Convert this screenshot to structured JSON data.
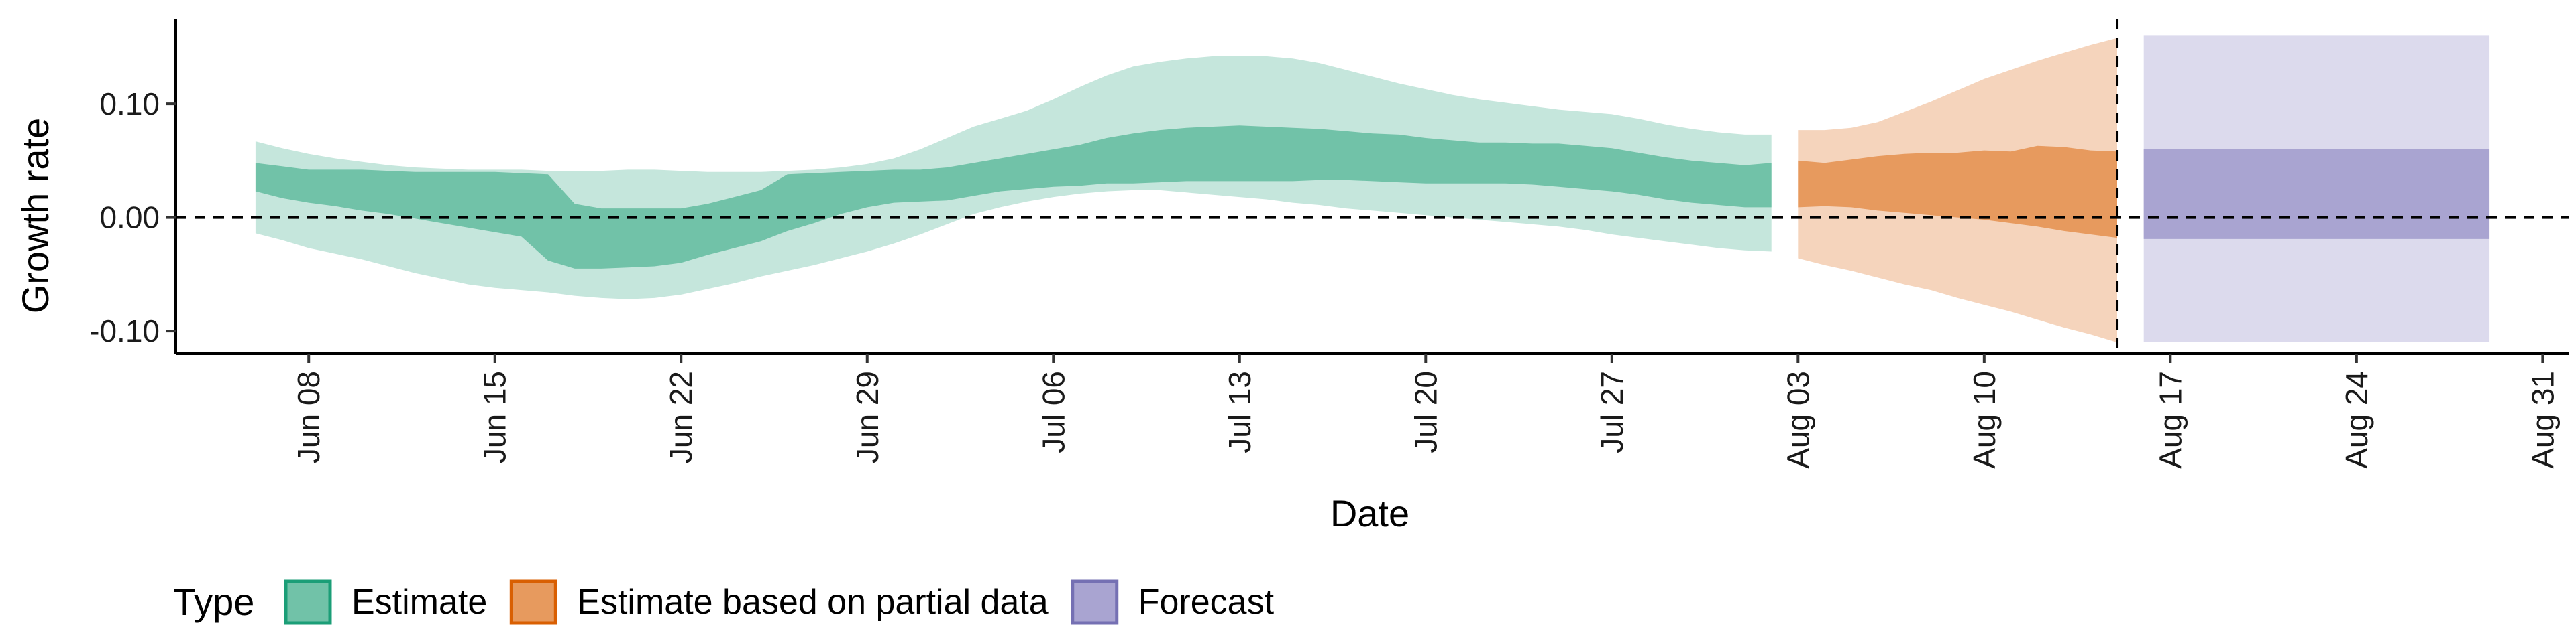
{
  "chart_data": {
    "type": "area",
    "xlabel": "Date",
    "ylabel": "Growth rate",
    "ylim": [
      -0.12,
      0.175
    ],
    "xlim": [
      "2020-06-03",
      "2020-09-01"
    ],
    "y_ticks": [
      -0.1,
      0.0,
      0.1
    ],
    "y_tick_labels": [
      "-0.10",
      "0.00",
      "0.10"
    ],
    "x_ticks": [
      "2020-06-08",
      "2020-06-15",
      "2020-06-22",
      "2020-06-29",
      "2020-07-06",
      "2020-07-13",
      "2020-07-20",
      "2020-07-27",
      "2020-08-03",
      "2020-08-10",
      "2020-08-17",
      "2020-08-24",
      "2020-08-31"
    ],
    "x_tick_labels": [
      "Jun 08",
      "Jun 15",
      "Jun 22",
      "Jun 29",
      "Jul 06",
      "Jul 13",
      "Jul 20",
      "Jul 27",
      "Aug 03",
      "Aug 10",
      "Aug 17",
      "Aug 24",
      "Aug 31"
    ],
    "reference_lines": {
      "horizontal_y": 0.0,
      "vertical_x": "2020-08-15",
      "style": "dashed"
    },
    "grid": false,
    "legend": {
      "title": "Type",
      "position": "bottom-left",
      "entries": [
        {
          "label": "Estimate",
          "fill": "#71c2a8",
          "border": "#1b9e77"
        },
        {
          "label": "Estimate based on partial data",
          "fill": "#e79a5e",
          "border": "#d95f02"
        },
        {
          "label": "Forecast",
          "fill": "#a9a4d1",
          "border": "#7570b3"
        }
      ]
    },
    "colors": {
      "estimate_inner": "#71c2a8",
      "estimate_outer": "#c5e6dc",
      "partial_inner": "#e79a5e",
      "partial_outer": "#f5d4bc",
      "forecast_inner": "#a9a4d1",
      "forecast_outer": "#dcdaed"
    },
    "series": [
      {
        "name": "Estimate",
        "x": [
          "2020-06-06",
          "2020-06-07",
          "2020-06-08",
          "2020-06-09",
          "2020-06-10",
          "2020-06-11",
          "2020-06-12",
          "2020-06-13",
          "2020-06-14",
          "2020-06-15",
          "2020-06-16",
          "2020-06-17",
          "2020-06-18",
          "2020-06-19",
          "2020-06-20",
          "2020-06-21",
          "2020-06-22",
          "2020-06-23",
          "2020-06-24",
          "2020-06-25",
          "2020-06-26",
          "2020-06-27",
          "2020-06-28",
          "2020-06-29",
          "2020-06-30",
          "2020-07-01",
          "2020-07-02",
          "2020-07-03",
          "2020-07-04",
          "2020-07-05",
          "2020-07-06",
          "2020-07-07",
          "2020-07-08",
          "2020-07-09",
          "2020-07-10",
          "2020-07-11",
          "2020-07-12",
          "2020-07-13",
          "2020-07-14",
          "2020-07-15",
          "2020-07-16",
          "2020-07-17",
          "2020-07-18",
          "2020-07-19",
          "2020-07-20",
          "2020-07-21",
          "2020-07-22",
          "2020-07-23",
          "2020-07-24",
          "2020-07-25",
          "2020-07-26",
          "2020-07-27",
          "2020-07-28",
          "2020-07-29",
          "2020-07-30",
          "2020-07-31",
          "2020-08-01",
          "2020-08-02"
        ],
        "upper_outer": [
          0.067,
          0.061,
          0.056,
          0.052,
          0.049,
          0.046,
          0.044,
          0.043,
          0.042,
          0.042,
          0.042,
          0.041,
          0.041,
          0.041,
          0.042,
          0.042,
          0.041,
          0.04,
          0.04,
          0.04,
          0.041,
          0.042,
          0.044,
          0.047,
          0.052,
          0.06,
          0.07,
          0.08,
          0.087,
          0.094,
          0.104,
          0.115,
          0.125,
          0.133,
          0.137,
          0.14,
          0.142,
          0.142,
          0.142,
          0.14,
          0.136,
          0.13,
          0.124,
          0.118,
          0.113,
          0.108,
          0.104,
          0.101,
          0.098,
          0.095,
          0.093,
          0.091,
          0.087,
          0.082,
          0.078,
          0.075,
          0.073,
          0.073
        ],
        "upper_inner": [
          0.048,
          0.045,
          0.042,
          0.042,
          0.042,
          0.041,
          0.04,
          0.04,
          0.04,
          0.04,
          0.039,
          0.038,
          0.012,
          0.008,
          0.008,
          0.008,
          0.008,
          0.012,
          0.018,
          0.024,
          0.038,
          0.039,
          0.04,
          0.041,
          0.042,
          0.042,
          0.044,
          0.048,
          0.052,
          0.056,
          0.06,
          0.064,
          0.07,
          0.074,
          0.077,
          0.079,
          0.08,
          0.081,
          0.08,
          0.079,
          0.078,
          0.076,
          0.074,
          0.073,
          0.07,
          0.068,
          0.066,
          0.066,
          0.065,
          0.065,
          0.063,
          0.061,
          0.057,
          0.053,
          0.05,
          0.048,
          0.046,
          0.048
        ],
        "lower_inner": [
          0.023,
          0.017,
          0.013,
          0.01,
          0.006,
          0.003,
          -0.001,
          -0.005,
          -0.009,
          -0.013,
          -0.017,
          -0.038,
          -0.045,
          -0.045,
          -0.044,
          -0.043,
          -0.04,
          -0.033,
          -0.027,
          -0.021,
          -0.012,
          -0.005,
          0.003,
          0.009,
          0.013,
          0.014,
          0.015,
          0.019,
          0.023,
          0.025,
          0.027,
          0.028,
          0.03,
          0.03,
          0.031,
          0.032,
          0.032,
          0.032,
          0.032,
          0.032,
          0.033,
          0.033,
          0.032,
          0.031,
          0.03,
          0.03,
          0.03,
          0.03,
          0.029,
          0.027,
          0.025,
          0.023,
          0.02,
          0.016,
          0.013,
          0.011,
          0.009,
          0.009
        ],
        "lower_outer": [
          -0.014,
          -0.02,
          -0.027,
          -0.032,
          -0.037,
          -0.043,
          -0.049,
          -0.054,
          -0.059,
          -0.062,
          -0.064,
          -0.066,
          -0.069,
          -0.071,
          -0.072,
          -0.071,
          -0.068,
          -0.063,
          -0.058,
          -0.052,
          -0.047,
          -0.042,
          -0.036,
          -0.03,
          -0.023,
          -0.015,
          -0.006,
          0.003,
          0.009,
          0.014,
          0.018,
          0.021,
          0.023,
          0.024,
          0.024,
          0.022,
          0.02,
          0.018,
          0.016,
          0.013,
          0.011,
          0.008,
          0.006,
          0.004,
          0.002,
          0.0,
          -0.002,
          -0.004,
          -0.006,
          -0.008,
          -0.011,
          -0.015,
          -0.018,
          -0.021,
          -0.024,
          -0.027,
          -0.029,
          -0.03
        ]
      },
      {
        "name": "Estimate based on partial data",
        "x": [
          "2020-08-03",
          "2020-08-04",
          "2020-08-05",
          "2020-08-06",
          "2020-08-07",
          "2020-08-08",
          "2020-08-09",
          "2020-08-10",
          "2020-08-11",
          "2020-08-12",
          "2020-08-13",
          "2020-08-14",
          "2020-08-15"
        ],
        "upper_outer": [
          0.077,
          0.077,
          0.079,
          0.084,
          0.093,
          0.102,
          0.112,
          0.122,
          0.13,
          0.138,
          0.145,
          0.152,
          0.158
        ],
        "upper_inner": [
          0.05,
          0.048,
          0.051,
          0.054,
          0.056,
          0.057,
          0.057,
          0.059,
          0.058,
          0.063,
          0.062,
          0.059,
          0.058
        ],
        "lower_inner": [
          0.009,
          0.01,
          0.009,
          0.006,
          0.004,
          0.002,
          0.0,
          -0.002,
          -0.005,
          -0.008,
          -0.012,
          -0.015,
          -0.018
        ],
        "lower_outer": [
          -0.036,
          -0.042,
          -0.047,
          -0.053,
          -0.059,
          -0.064,
          -0.071,
          -0.077,
          -0.083,
          -0.09,
          -0.097,
          -0.103,
          -0.11
        ]
      },
      {
        "name": "Forecast",
        "x": [
          "2020-08-16",
          "2020-08-29"
        ],
        "upper_outer": [
          0.16,
          0.16
        ],
        "upper_inner": [
          0.06,
          0.06
        ],
        "lower_inner": [
          -0.019,
          -0.019
        ],
        "lower_outer": [
          -0.11,
          -0.11
        ]
      }
    ]
  }
}
